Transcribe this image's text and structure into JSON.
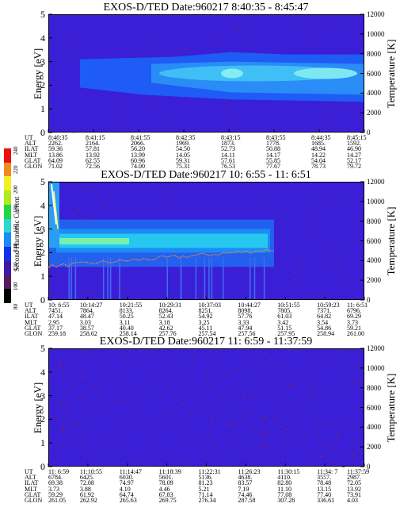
{
  "chart_data": [
    {
      "type": "heatmap",
      "title": "EXOS-D/TED   Date:960217  8:40:35 - 8:45:47",
      "ylabel": "Energy [eV]",
      "ylabel_right": "Temperature [K]",
      "ylim": [
        0,
        5
      ],
      "ylim_right": [
        0,
        12000
      ],
      "yticks": [
        "0",
        "1",
        "2",
        "3",
        "4",
        "5"
      ],
      "yticks_right": [
        "0",
        "2000",
        "4000",
        "6000",
        "8000",
        "10000",
        "12000"
      ],
      "table": {
        "row_labels": [
          "UT",
          "ALT",
          "ILAT",
          "MLT",
          "GLAT",
          "GLON"
        ],
        "columns": [
          [
            "8:40:35",
            "2262.",
            "59.36",
            "13.86",
            "64.09",
            "71.02"
          ],
          [
            "8:41:15",
            "2164.",
            "57.81",
            "13.92",
            "62.55",
            "72.56"
          ],
          [
            "8:41:55",
            "2066.",
            "56.20",
            "13.99",
            "60.96",
            "74.00"
          ],
          [
            "8:42:35",
            "1969.",
            "54.50",
            "14.05",
            "59.31",
            "75.31"
          ],
          [
            "8:43:15",
            "1873.",
            "52.73",
            "14.11",
            "57.61",
            "76.53"
          ],
          [
            "8:43:55",
            "1778.",
            "50.88",
            "14.17",
            "55.85",
            "77.67"
          ],
          [
            "8:44:35",
            "1685.",
            "48.94",
            "14.22",
            "54.04",
            "78.73"
          ],
          [
            "8:45:15",
            "1592.",
            "46.90",
            "14.27",
            "52.17",
            "79.72"
          ]
        ]
      }
    },
    {
      "type": "heatmap",
      "title": "EXOS-D/TED   Date:960217  10: 6:55 - 11: 6:51",
      "ylabel": "Energy [eV]",
      "ylabel_right": "Temperature [K]",
      "ylim": [
        0,
        5
      ],
      "ylim_right": [
        0,
        12000
      ],
      "yticks": [
        "0",
        "1",
        "2",
        "3",
        "4",
        "5"
      ],
      "yticks_right": [
        "0",
        "2000",
        "4000",
        "6000",
        "8000",
        "10000",
        "12000"
      ],
      "colorbar": {
        "label": "Second Harmonic Current",
        "ticks": [
          "80",
          "100",
          "120",
          "140",
          "160",
          "180",
          "200",
          "220",
          "240"
        ]
      },
      "table": {
        "row_labels": [
          "UT",
          "ALT",
          "ILAT",
          "MLT",
          "GLAT",
          "GLON"
        ],
        "columns": [
          [
            "10: 6:55",
            "7451.",
            "47.14",
            "2.95",
            "37.17",
            "259.18"
          ],
          [
            "10:14:27",
            "7864.",
            "48.47",
            "3.03",
            "38.57",
            "258.62"
          ],
          [
            "10:21:55",
            "8133.",
            "50.25",
            "3.11",
            "40.40",
            "258.14"
          ],
          [
            "10:29:31",
            "8264.",
            "52.43",
            "3.18",
            "42.62",
            "257.76"
          ],
          [
            "10:37:03",
            "8251.",
            "54.92",
            "3.25",
            "45.11",
            "257.54"
          ],
          [
            "10:44:27",
            "8098.",
            "57.76",
            "3.33",
            "47.94",
            "257.56"
          ],
          [
            "10:51:55",
            "7805.",
            "61.03",
            "3.42",
            "51.15",
            "257.95"
          ],
          [
            "10:59:23",
            "7371.",
            "64.82",
            "3.54",
            "54.86",
            "258.94"
          ],
          [
            "11: 6:51",
            "6796.",
            "69.29",
            "3.73",
            "59.21",
            "261.00"
          ]
        ]
      }
    },
    {
      "type": "heatmap",
      "title": "EXOS-D/TED   Date:960217  11: 6:59 - 11:37:59",
      "ylabel": "Energy [eV]",
      "ylabel_right": "Temperature [K]",
      "ylim": [
        0,
        5
      ],
      "ylim_right": [
        0,
        12000
      ],
      "yticks": [
        "0",
        "1",
        "2",
        "3",
        "4",
        "5"
      ],
      "yticks_right": [
        "0",
        "2000",
        "4000",
        "6000",
        "8000",
        "10000",
        "12000"
      ],
      "table": {
        "row_labels": [
          "UT",
          "ALT",
          "ILAT",
          "MLT",
          "GLAT",
          "GLON"
        ],
        "columns": [
          [
            "11: 6:59",
            "6784.",
            "69.38",
            "3.73",
            "59.29",
            "261.05"
          ],
          [
            "11:10:55",
            "6425.",
            "72.08",
            "3.88",
            "61.92",
            "262.92"
          ],
          [
            "11:14:47",
            "6030.",
            "74.97",
            "4.10",
            "64.74",
            "265.63"
          ],
          [
            "11:18:39",
            "5601.",
            "78.09",
            "4.46",
            "67.83",
            "269.75"
          ],
          [
            "11:22:31",
            "5136.",
            "81.23",
            "5.21",
            "71.14",
            "276.34"
          ],
          [
            "11:26:23",
            "4638.",
            "83.57",
            "7.19",
            "74.46",
            "287.58"
          ],
          [
            "11:30:15",
            "4110.",
            "82.80",
            "11.10",
            "77.08",
            "307.28"
          ],
          [
            "11:34: 7",
            "3557.",
            "78.48",
            "13.15",
            "77.40",
            "336.61"
          ],
          [
            "11:37:59",
            "2987.",
            "72.05",
            "13.92",
            "73.91",
            "4.03"
          ]
        ]
      }
    }
  ]
}
